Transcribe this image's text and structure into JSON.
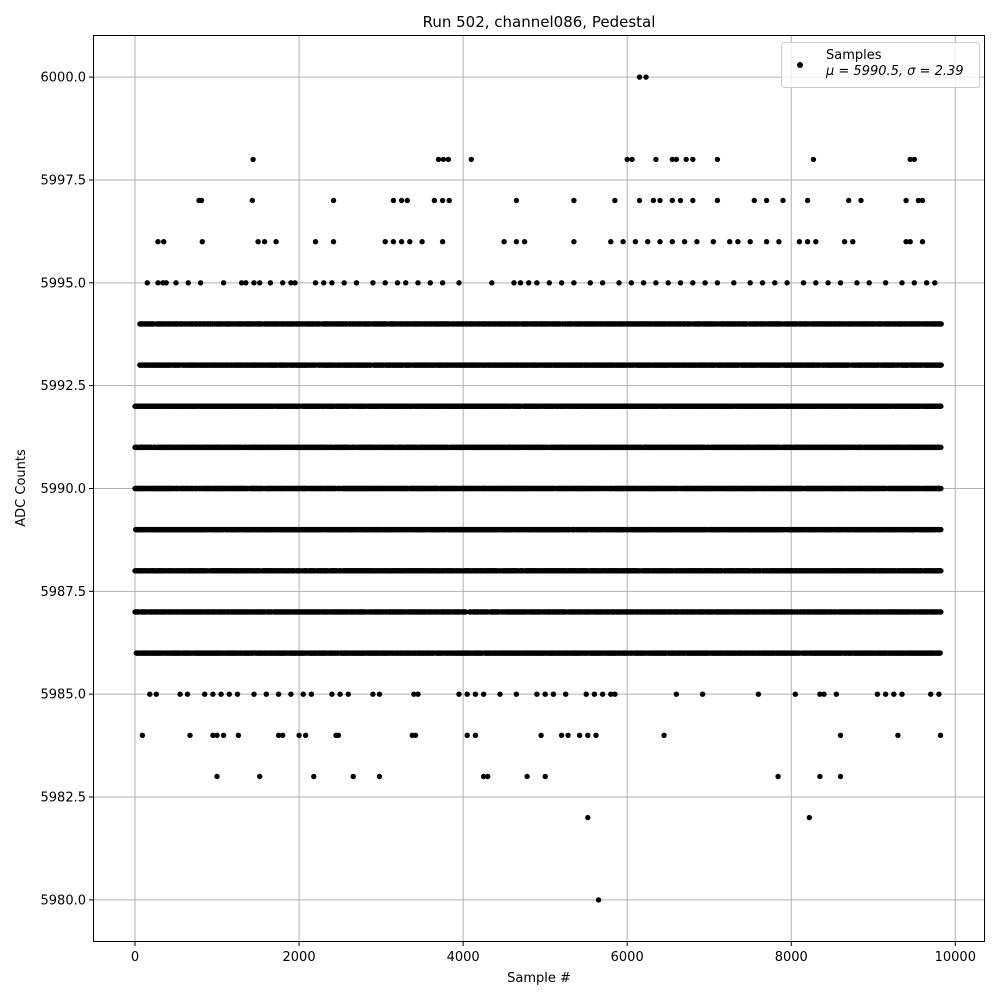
{
  "chart_data": {
    "type": "scatter",
    "title": "Run 502, channel086, Pedestal",
    "xlabel": "Sample #",
    "ylabel": "ADC Counts",
    "xlim": [
      -500,
      10350
    ],
    "ylim": [
      5979.0,
      6001.0
    ],
    "xticks": [
      0,
      2000,
      4000,
      6000,
      8000,
      10000
    ],
    "yticks": [
      5980.0,
      5982.5,
      5985.0,
      5987.5,
      5990.0,
      5992.5,
      5995.0,
      5997.5,
      6000.0
    ],
    "xtick_labels": [
      "0",
      "2000",
      "4000",
      "6000",
      "8000",
      "10000"
    ],
    "ytick_labels": [
      "5980.0",
      "5982.5",
      "5985.0",
      "5987.5",
      "5990.0",
      "5992.5",
      "5995.0",
      "5997.5",
      "6000.0"
    ],
    "grid": true,
    "legend_position": "top-right",
    "legend": {
      "series_label": "Samples",
      "stats_label": "μ = 5990.5, σ = 2.39"
    },
    "marker_color": "#000000",
    "x_range": [
      0,
      9830
    ],
    "series": [
      {
        "name": "Samples",
        "dense_levels": [
          {
            "y": 5986,
            "x": [
              0,
              9830
            ]
          },
          {
            "y": 5987,
            "x": [
              0,
              9830
            ]
          },
          {
            "y": 5988,
            "x": [
              0,
              9830
            ]
          },
          {
            "y": 5989,
            "x": [
              0,
              9830
            ]
          },
          {
            "y": 5990,
            "x": [
              0,
              9830
            ]
          },
          {
            "y": 5991,
            "x": [
              0,
              9830
            ]
          },
          {
            "y": 5992,
            "x": [
              0,
              9830
            ]
          },
          {
            "y": 5993,
            "x": [
              60,
              9830
            ]
          },
          {
            "y": 5994,
            "x": [
              60,
              9830
            ]
          }
        ],
        "points": [
          {
            "x": 150,
            "y": 5995
          },
          {
            "x": 280,
            "y": 5995
          },
          {
            "x": 340,
            "y": 5995
          },
          {
            "x": 380,
            "y": 5995
          },
          {
            "x": 500,
            "y": 5995
          },
          {
            "x": 650,
            "y": 5995
          },
          {
            "x": 800,
            "y": 5995
          },
          {
            "x": 1080,
            "y": 5995
          },
          {
            "x": 1300,
            "y": 5995
          },
          {
            "x": 1350,
            "y": 5995
          },
          {
            "x": 1450,
            "y": 5995
          },
          {
            "x": 1520,
            "y": 5995
          },
          {
            "x": 1650,
            "y": 5995
          },
          {
            "x": 1800,
            "y": 5995
          },
          {
            "x": 1900,
            "y": 5995
          },
          {
            "x": 1950,
            "y": 5995
          },
          {
            "x": 2200,
            "y": 5995
          },
          {
            "x": 2300,
            "y": 5995
          },
          {
            "x": 2400,
            "y": 5995
          },
          {
            "x": 2550,
            "y": 5995
          },
          {
            "x": 2700,
            "y": 5995
          },
          {
            "x": 2900,
            "y": 5995
          },
          {
            "x": 3050,
            "y": 5995
          },
          {
            "x": 3200,
            "y": 5995
          },
          {
            "x": 3300,
            "y": 5995
          },
          {
            "x": 3450,
            "y": 5995
          },
          {
            "x": 3600,
            "y": 5995
          },
          {
            "x": 3750,
            "y": 5995
          },
          {
            "x": 3950,
            "y": 5995
          },
          {
            "x": 4350,
            "y": 5995
          },
          {
            "x": 4620,
            "y": 5995
          },
          {
            "x": 4700,
            "y": 5995
          },
          {
            "x": 4800,
            "y": 5995
          },
          {
            "x": 4900,
            "y": 5995
          },
          {
            "x": 5050,
            "y": 5995
          },
          {
            "x": 5200,
            "y": 5995
          },
          {
            "x": 5350,
            "y": 5995
          },
          {
            "x": 5550,
            "y": 5995
          },
          {
            "x": 5700,
            "y": 5995
          },
          {
            "x": 5900,
            "y": 5995
          },
          {
            "x": 6050,
            "y": 5995
          },
          {
            "x": 6200,
            "y": 5995
          },
          {
            "x": 6350,
            "y": 5995
          },
          {
            "x": 6500,
            "y": 5995
          },
          {
            "x": 6650,
            "y": 5995
          },
          {
            "x": 6800,
            "y": 5995
          },
          {
            "x": 6950,
            "y": 5995
          },
          {
            "x": 7100,
            "y": 5995
          },
          {
            "x": 7300,
            "y": 5995
          },
          {
            "x": 7500,
            "y": 5995
          },
          {
            "x": 7650,
            "y": 5995
          },
          {
            "x": 7800,
            "y": 5995
          },
          {
            "x": 7950,
            "y": 5995
          },
          {
            "x": 8150,
            "y": 5995
          },
          {
            "x": 8300,
            "y": 5995
          },
          {
            "x": 8450,
            "y": 5995
          },
          {
            "x": 8600,
            "y": 5995
          },
          {
            "x": 8800,
            "y": 5995
          },
          {
            "x": 8950,
            "y": 5995
          },
          {
            "x": 9150,
            "y": 5995
          },
          {
            "x": 9350,
            "y": 5995
          },
          {
            "x": 9500,
            "y": 5995
          },
          {
            "x": 9650,
            "y": 5995
          },
          {
            "x": 9750,
            "y": 5995
          },
          {
            "x": 280,
            "y": 5996
          },
          {
            "x": 350,
            "y": 5996
          },
          {
            "x": 820,
            "y": 5996
          },
          {
            "x": 1500,
            "y": 5996
          },
          {
            "x": 1580,
            "y": 5996
          },
          {
            "x": 1720,
            "y": 5996
          },
          {
            "x": 2200,
            "y": 5996
          },
          {
            "x": 2420,
            "y": 5996
          },
          {
            "x": 3050,
            "y": 5996
          },
          {
            "x": 3150,
            "y": 5996
          },
          {
            "x": 3250,
            "y": 5996
          },
          {
            "x": 3350,
            "y": 5996
          },
          {
            "x": 3500,
            "y": 5996
          },
          {
            "x": 3750,
            "y": 5996
          },
          {
            "x": 4500,
            "y": 5996
          },
          {
            "x": 4650,
            "y": 5996
          },
          {
            "x": 4750,
            "y": 5996
          },
          {
            "x": 5350,
            "y": 5996
          },
          {
            "x": 5800,
            "y": 5996
          },
          {
            "x": 5950,
            "y": 5996
          },
          {
            "x": 6100,
            "y": 5996
          },
          {
            "x": 6250,
            "y": 5996
          },
          {
            "x": 6400,
            "y": 5996
          },
          {
            "x": 6550,
            "y": 5996
          },
          {
            "x": 6700,
            "y": 5996
          },
          {
            "x": 6850,
            "y": 5996
          },
          {
            "x": 7050,
            "y": 5996
          },
          {
            "x": 7250,
            "y": 5996
          },
          {
            "x": 7350,
            "y": 5996
          },
          {
            "x": 7500,
            "y": 5996
          },
          {
            "x": 7700,
            "y": 5996
          },
          {
            "x": 7850,
            "y": 5996
          },
          {
            "x": 8100,
            "y": 5996
          },
          {
            "x": 8200,
            "y": 5996
          },
          {
            "x": 8300,
            "y": 5996
          },
          {
            "x": 8650,
            "y": 5996
          },
          {
            "x": 8750,
            "y": 5996
          },
          {
            "x": 9400,
            "y": 5996
          },
          {
            "x": 9450,
            "y": 5996
          },
          {
            "x": 9600,
            "y": 5996
          },
          {
            "x": 780,
            "y": 5997
          },
          {
            "x": 810,
            "y": 5997
          },
          {
            "x": 1430,
            "y": 5997
          },
          {
            "x": 2420,
            "y": 5997
          },
          {
            "x": 3150,
            "y": 5997
          },
          {
            "x": 3250,
            "y": 5997
          },
          {
            "x": 3320,
            "y": 5997
          },
          {
            "x": 3650,
            "y": 5997
          },
          {
            "x": 3750,
            "y": 5997
          },
          {
            "x": 3830,
            "y": 5997
          },
          {
            "x": 4650,
            "y": 5997
          },
          {
            "x": 5350,
            "y": 5997
          },
          {
            "x": 5850,
            "y": 5997
          },
          {
            "x": 6150,
            "y": 5997
          },
          {
            "x": 6320,
            "y": 5997
          },
          {
            "x": 6400,
            "y": 5997
          },
          {
            "x": 6550,
            "y": 5997
          },
          {
            "x": 6650,
            "y": 5997
          },
          {
            "x": 6800,
            "y": 5997
          },
          {
            "x": 7100,
            "y": 5997
          },
          {
            "x": 7550,
            "y": 5997
          },
          {
            "x": 7700,
            "y": 5997
          },
          {
            "x": 7900,
            "y": 5997
          },
          {
            "x": 8200,
            "y": 5997
          },
          {
            "x": 8700,
            "y": 5997
          },
          {
            "x": 8850,
            "y": 5997
          },
          {
            "x": 9400,
            "y": 5997
          },
          {
            "x": 9550,
            "y": 5997
          },
          {
            "x": 9600,
            "y": 5997
          },
          {
            "x": 1440,
            "y": 5998
          },
          {
            "x": 3700,
            "y": 5998
          },
          {
            "x": 3760,
            "y": 5998
          },
          {
            "x": 3820,
            "y": 5998
          },
          {
            "x": 4100,
            "y": 5998
          },
          {
            "x": 6000,
            "y": 5998
          },
          {
            "x": 6060,
            "y": 5998
          },
          {
            "x": 6350,
            "y": 5998
          },
          {
            "x": 6550,
            "y": 5998
          },
          {
            "x": 6600,
            "y": 5998
          },
          {
            "x": 6720,
            "y": 5998
          },
          {
            "x": 6800,
            "y": 5998
          },
          {
            "x": 7100,
            "y": 5998
          },
          {
            "x": 8270,
            "y": 5998
          },
          {
            "x": 9450,
            "y": 5998
          },
          {
            "x": 9500,
            "y": 5998
          },
          {
            "x": 6150,
            "y": 6000
          },
          {
            "x": 6230,
            "y": 6000
          },
          {
            "x": 180,
            "y": 5985
          },
          {
            "x": 260,
            "y": 5985
          },
          {
            "x": 550,
            "y": 5985
          },
          {
            "x": 640,
            "y": 5985
          },
          {
            "x": 850,
            "y": 5985
          },
          {
            "x": 950,
            "y": 5985
          },
          {
            "x": 1050,
            "y": 5985
          },
          {
            "x": 1150,
            "y": 5985
          },
          {
            "x": 1250,
            "y": 5985
          },
          {
            "x": 1450,
            "y": 5985
          },
          {
            "x": 1600,
            "y": 5985
          },
          {
            "x": 1750,
            "y": 5985
          },
          {
            "x": 1900,
            "y": 5985
          },
          {
            "x": 2050,
            "y": 5985
          },
          {
            "x": 2150,
            "y": 5985
          },
          {
            "x": 2400,
            "y": 5985
          },
          {
            "x": 2500,
            "y": 5985
          },
          {
            "x": 2600,
            "y": 5985
          },
          {
            "x": 2900,
            "y": 5985
          },
          {
            "x": 2980,
            "y": 5985
          },
          {
            "x": 3400,
            "y": 5985
          },
          {
            "x": 3450,
            "y": 5985
          },
          {
            "x": 3950,
            "y": 5985
          },
          {
            "x": 4050,
            "y": 5985
          },
          {
            "x": 4150,
            "y": 5985
          },
          {
            "x": 4250,
            "y": 5985
          },
          {
            "x": 4450,
            "y": 5985
          },
          {
            "x": 4650,
            "y": 5985
          },
          {
            "x": 4900,
            "y": 5985
          },
          {
            "x": 5000,
            "y": 5985
          },
          {
            "x": 5100,
            "y": 5985
          },
          {
            "x": 5250,
            "y": 5985
          },
          {
            "x": 5500,
            "y": 5985
          },
          {
            "x": 5600,
            "y": 5985
          },
          {
            "x": 5700,
            "y": 5985
          },
          {
            "x": 5800,
            "y": 5985
          },
          {
            "x": 5850,
            "y": 5985
          },
          {
            "x": 6600,
            "y": 5985
          },
          {
            "x": 6920,
            "y": 5985
          },
          {
            "x": 7600,
            "y": 5985
          },
          {
            "x": 8050,
            "y": 5985
          },
          {
            "x": 8350,
            "y": 5985
          },
          {
            "x": 8400,
            "y": 5985
          },
          {
            "x": 8550,
            "y": 5985
          },
          {
            "x": 9050,
            "y": 5985
          },
          {
            "x": 9150,
            "y": 5985
          },
          {
            "x": 9250,
            "y": 5985
          },
          {
            "x": 9350,
            "y": 5985
          },
          {
            "x": 9700,
            "y": 5985
          },
          {
            "x": 9800,
            "y": 5985
          },
          {
            "x": 90,
            "y": 5984
          },
          {
            "x": 670,
            "y": 5984
          },
          {
            "x": 950,
            "y": 5984
          },
          {
            "x": 1000,
            "y": 5984
          },
          {
            "x": 1080,
            "y": 5984
          },
          {
            "x": 1260,
            "y": 5984
          },
          {
            "x": 1750,
            "y": 5984
          },
          {
            "x": 1800,
            "y": 5984
          },
          {
            "x": 2000,
            "y": 5984
          },
          {
            "x": 2080,
            "y": 5984
          },
          {
            "x": 2450,
            "y": 5984
          },
          {
            "x": 2480,
            "y": 5984
          },
          {
            "x": 3380,
            "y": 5984
          },
          {
            "x": 3420,
            "y": 5984
          },
          {
            "x": 4050,
            "y": 5984
          },
          {
            "x": 4150,
            "y": 5984
          },
          {
            "x": 4950,
            "y": 5984
          },
          {
            "x": 5200,
            "y": 5984
          },
          {
            "x": 5280,
            "y": 5984
          },
          {
            "x": 5420,
            "y": 5984
          },
          {
            "x": 5520,
            "y": 5984
          },
          {
            "x": 5620,
            "y": 5984
          },
          {
            "x": 6450,
            "y": 5984
          },
          {
            "x": 8600,
            "y": 5984
          },
          {
            "x": 9300,
            "y": 5984
          },
          {
            "x": 9820,
            "y": 5984
          },
          {
            "x": 1000,
            "y": 5983
          },
          {
            "x": 1520,
            "y": 5983
          },
          {
            "x": 2180,
            "y": 5983
          },
          {
            "x": 2660,
            "y": 5983
          },
          {
            "x": 2980,
            "y": 5983
          },
          {
            "x": 4250,
            "y": 5983
          },
          {
            "x": 4300,
            "y": 5983
          },
          {
            "x": 4780,
            "y": 5983
          },
          {
            "x": 5000,
            "y": 5983
          },
          {
            "x": 7840,
            "y": 5983
          },
          {
            "x": 8350,
            "y": 5983
          },
          {
            "x": 8600,
            "y": 5983
          },
          {
            "x": 5520,
            "y": 5982
          },
          {
            "x": 8220,
            "y": 5982
          },
          {
            "x": 5650,
            "y": 5980
          }
        ]
      }
    ]
  }
}
